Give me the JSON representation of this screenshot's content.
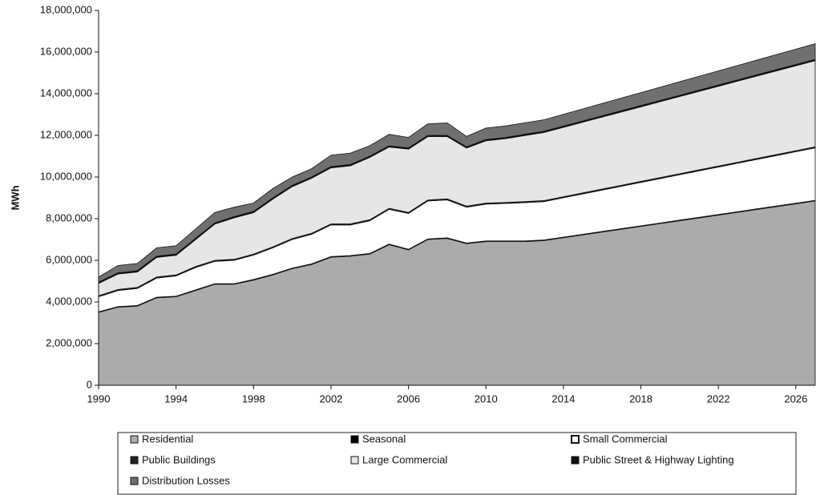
{
  "chart_data": {
    "type": "stacked_area",
    "ylabel": "MWh",
    "x": [
      1990,
      1991,
      1992,
      1993,
      1994,
      1995,
      1996,
      1997,
      1998,
      1999,
      2000,
      2001,
      2002,
      2003,
      2004,
      2005,
      2006,
      2007,
      2008,
      2009,
      2010,
      2011,
      2012,
      2013,
      2014,
      2015,
      2016,
      2017,
      2018,
      2019,
      2020,
      2021,
      2022,
      2023,
      2024,
      2025,
      2026,
      2027
    ],
    "xlim": [
      1990,
      2027
    ],
    "xticks": [
      1990,
      1994,
      1998,
      2002,
      2006,
      2010,
      2014,
      2018,
      2022,
      2026
    ],
    "ylim": [
      0,
      18000000
    ],
    "yticks": [
      0,
      {
        "value": 2000000,
        "label": "2,000,000"
      },
      {
        "value": 4000000,
        "label": "4,000,000"
      },
      {
        "value": 6000000,
        "label": "6,000,000"
      },
      {
        "value": 8000000,
        "label": "8,000,000"
      },
      {
        "value": 10000000,
        "label": "10,000,000"
      },
      {
        "value": 12000000,
        "label": "12,000,000"
      },
      {
        "value": 14000000,
        "label": "14,000,000"
      },
      {
        "value": 16000000,
        "label": "16,000,000"
      },
      {
        "value": 18000000,
        "label": "18,000,000"
      }
    ],
    "series": [
      {
        "name": "Residential",
        "color": "#ababab",
        "values": [
          3500000,
          3750000,
          3800000,
          4200000,
          4250000,
          4550000,
          4850000,
          4850000,
          5050000,
          5300000,
          5600000,
          5800000,
          6150000,
          6200000,
          6300000,
          6750000,
          6500000,
          7000000,
          7050000,
          6800000,
          6900000,
          6900000,
          6900000,
          6950000,
          7086000,
          7221000,
          7357000,
          7493000,
          7629000,
          7764000,
          7900000,
          8036000,
          8171000,
          8307000,
          8443000,
          8579000,
          8714000,
          8850000
        ]
      },
      {
        "name": "Seasonal",
        "color": "#000000",
        "values": [
          30000,
          30000,
          30000,
          30000,
          30000,
          30000,
          30000,
          30000,
          30000,
          30000,
          30000,
          30000,
          30000,
          30000,
          30000,
          30000,
          30000,
          30000,
          30000,
          30000,
          30000,
          30000,
          30000,
          30000,
          30000,
          30000,
          30000,
          30000,
          30000,
          30000,
          30000,
          30000,
          30000,
          30000,
          30000,
          30000,
          30000,
          30000
        ]
      },
      {
        "name": "Small Commercial",
        "color": "#ffffff",
        "values": [
          720000,
          770000,
          820000,
          920000,
          970000,
          1070000,
          1070000,
          1120000,
          1170000,
          1270000,
          1370000,
          1420000,
          1520000,
          1470000,
          1570000,
          1670000,
          1720000,
          1820000,
          1820000,
          1720000,
          1770000,
          1800000,
          1840000,
          1840000,
          1888000,
          1938000,
          1986000,
          2034000,
          2082000,
          2132000,
          2180000,
          2228000,
          2278000,
          2326000,
          2374000,
          2422000,
          2472000,
          2520000
        ]
      },
      {
        "name": "Public Buildings",
        "color": "#222222",
        "values": [
          50000,
          50000,
          50000,
          50000,
          50000,
          50000,
          50000,
          50000,
          50000,
          50000,
          50000,
          50000,
          50000,
          50000,
          50000,
          50000,
          50000,
          50000,
          50000,
          50000,
          50000,
          50000,
          50000,
          50000,
          50000,
          50000,
          50000,
          50000,
          50000,
          50000,
          50000,
          50000,
          50000,
          50000,
          50000,
          50000,
          50000,
          50000
        ]
      },
      {
        "name": "Large Commercial",
        "color": "#e6e6e6",
        "values": [
          590000,
          740000,
          740000,
          940000,
          940000,
          1290000,
          1740000,
          1990000,
          1990000,
          2290000,
          2490000,
          2640000,
          2690000,
          2790000,
          2990000,
          2940000,
          3040000,
          3040000,
          2990000,
          2790000,
          2990000,
          3060000,
          3170000,
          3270000,
          3332000,
          3394000,
          3456000,
          3519000,
          3581000,
          3643000,
          3705000,
          3767000,
          3829000,
          3891000,
          3954000,
          4016000,
          4078000,
          4140000
        ]
      },
      {
        "name": "Public Street & Highway Lighting",
        "color": "#111111",
        "values": [
          60000,
          60000,
          60000,
          60000,
          60000,
          60000,
          60000,
          60000,
          60000,
          60000,
          60000,
          60000,
          60000,
          60000,
          60000,
          60000,
          60000,
          60000,
          60000,
          60000,
          60000,
          60000,
          60000,
          60000,
          60000,
          60000,
          60000,
          60000,
          60000,
          60000,
          60000,
          60000,
          60000,
          60000,
          60000,
          60000,
          60000,
          60000
        ]
      },
      {
        "name": "Distribution Losses",
        "color": "#707070",
        "values": [
          250000,
          350000,
          350000,
          400000,
          400000,
          450000,
          500000,
          450000,
          400000,
          450000,
          400000,
          400000,
          550000,
          550000,
          500000,
          550000,
          500000,
          550000,
          600000,
          500000,
          550000,
          550000,
          550000,
          550000,
          565000,
          578000,
          593000,
          607000,
          622000,
          635000,
          650000,
          665000,
          678000,
          693000,
          707000,
          722000,
          735000,
          750000
        ]
      }
    ]
  }
}
